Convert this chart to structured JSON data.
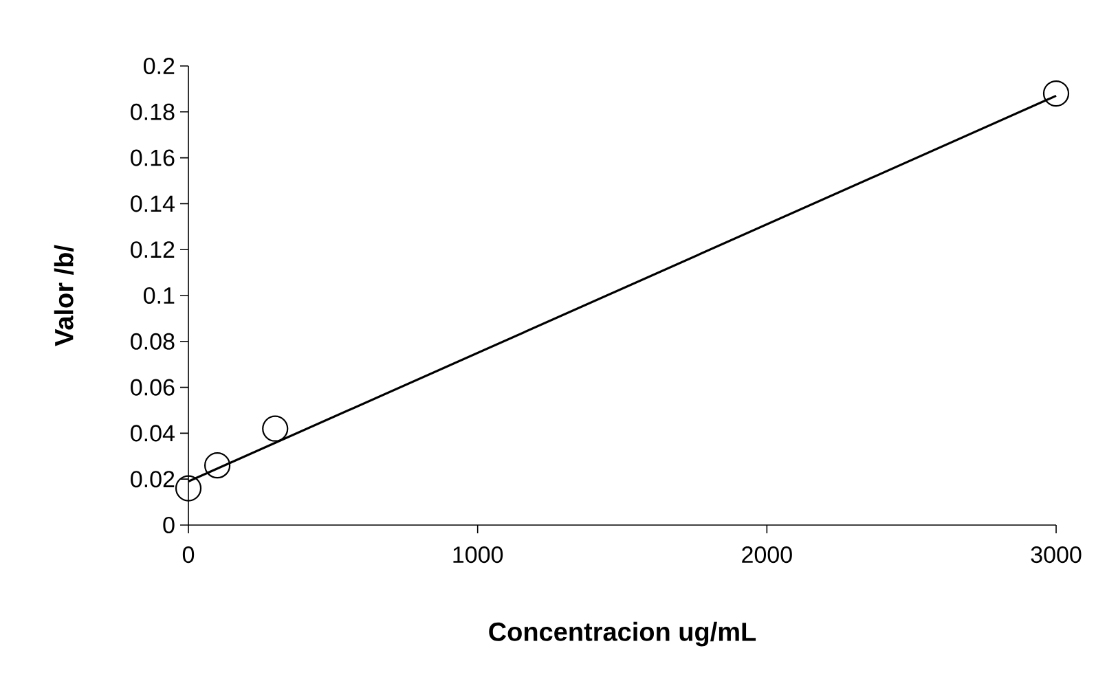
{
  "chart_data": {
    "type": "scatter",
    "xlabel": "Concentracion ug/mL",
    "ylabel": "Valor /b/",
    "xlim": [
      0,
      3000
    ],
    "xticks": [
      0,
      1000,
      2000,
      3000
    ],
    "ylim": [
      0,
      0.2
    ],
    "yticks": [
      0,
      0.02,
      0.04,
      0.06,
      0.08,
      0.1,
      0.12,
      0.14,
      0.16,
      0.18,
      0.2
    ],
    "grid": false,
    "series": [
      {
        "color": "#000000",
        "marker": "circle",
        "x": [
          0,
          100,
          300,
          3000
        ],
        "values": [
          0.016,
          0.026,
          0.042,
          0.188
        ]
      },
      {
        "type": "line",
        "color": "#000000",
        "marker": "none",
        "line_style": "solid",
        "x": [
          0,
          3000
        ],
        "values": [
          0.019,
          0.187
        ]
      }
    ]
  }
}
